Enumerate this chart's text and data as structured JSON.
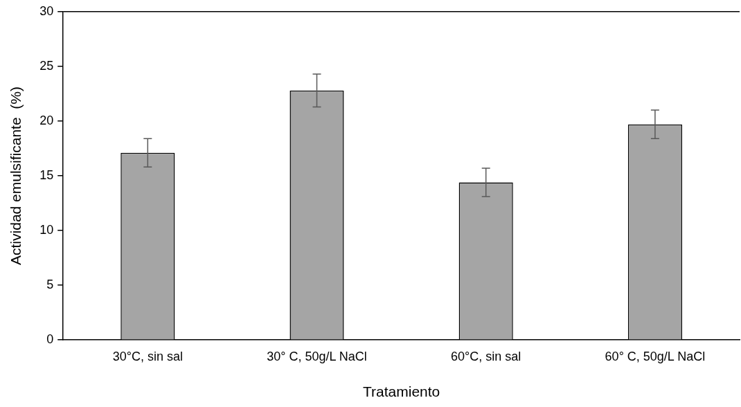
{
  "chart_data": {
    "type": "bar",
    "xlabel": "Tratamiento",
    "ylabel": "Actividad emulsificante  (%)",
    "categories": [
      "30°C, sin sal",
      "30° C, 50g/L NaCl",
      "60°C, sin sal",
      "60° C, 50g/L NaCl"
    ],
    "values": [
      17.1,
      22.8,
      14.4,
      19.7
    ],
    "errors": [
      1.3,
      1.5,
      1.3,
      1.3
    ],
    "color": "#a5a5a5",
    "ylim": [
      0,
      30
    ],
    "yticks": [
      0,
      5,
      10,
      15,
      20,
      25,
      30
    ],
    "grid": false,
    "legend": false
  }
}
